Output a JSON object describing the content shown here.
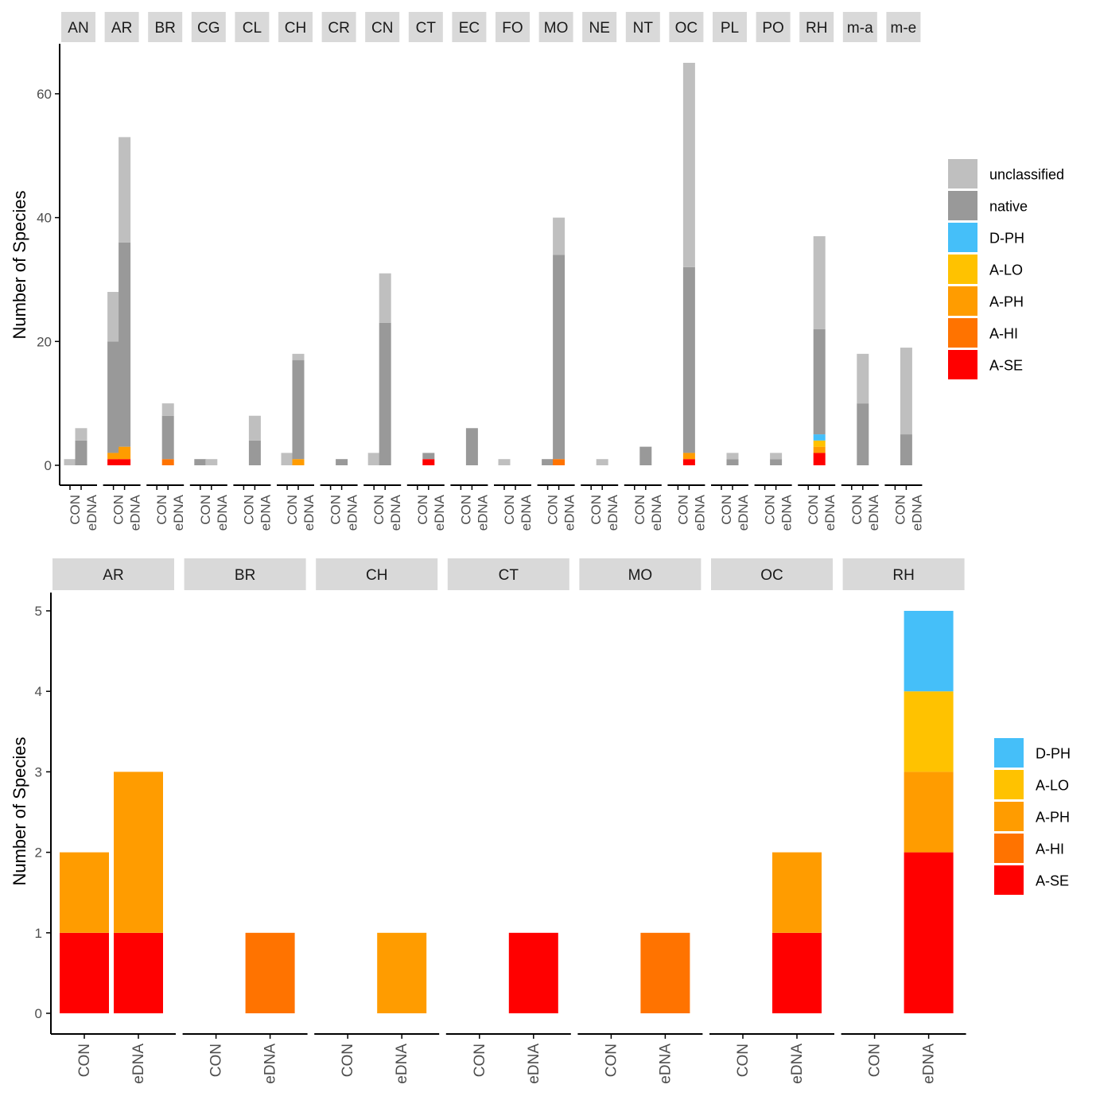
{
  "colors": {
    "unclassified": "#bfbfbf",
    "native": "#999999",
    "D-PH": "#45bff9",
    "A-LO": "#ffc200",
    "A-PH": "#ff9c00",
    "A-HI": "#ff7300",
    "A-SE": "#ff0000",
    "strip": "#d9d9d9",
    "axis": "#000000",
    "tick_text": "#4d4d4d"
  },
  "chart_data": [
    {
      "type": "bar",
      "stacked": true,
      "ylabel": "Number of Species",
      "ylim": [
        0,
        68
      ],
      "yticks": [
        0,
        20,
        40,
        60
      ],
      "x_levels": [
        "CON",
        "eDNA"
      ],
      "stack_order": [
        "A-SE",
        "A-HI",
        "A-PH",
        "A-LO",
        "D-PH",
        "native",
        "unclassified"
      ],
      "legend": [
        "unclassified",
        "native",
        "D-PH",
        "A-LO",
        "A-PH",
        "A-HI",
        "A-SE"
      ],
      "facets": [
        {
          "name": "AN",
          "CON": {
            "unclassified": 1
          },
          "eDNA": {
            "native": 4,
            "unclassified": 2
          }
        },
        {
          "name": "AR",
          "CON": {
            "A-SE": 1,
            "A-PH": 1,
            "native": 18,
            "unclassified": 8
          },
          "eDNA": {
            "A-SE": 1,
            "A-PH": 2,
            "native": 33,
            "unclassified": 17
          }
        },
        {
          "name": "BR",
          "CON": {},
          "eDNA": {
            "A-HI": 1,
            "native": 7,
            "unclassified": 2
          }
        },
        {
          "name": "CG",
          "CON": {
            "native": 1
          },
          "eDNA": {
            "unclassified": 1
          }
        },
        {
          "name": "CL",
          "CON": {},
          "eDNA": {
            "native": 4,
            "unclassified": 4
          }
        },
        {
          "name": "CH",
          "CON": {
            "unclassified": 2
          },
          "eDNA": {
            "A-PH": 1,
            "native": 16,
            "unclassified": 1
          }
        },
        {
          "name": "CR",
          "CON": {},
          "eDNA": {
            "native": 1
          }
        },
        {
          "name": "CN",
          "CON": {
            "unclassified": 2
          },
          "eDNA": {
            "native": 23,
            "unclassified": 8
          }
        },
        {
          "name": "CT",
          "CON": {},
          "eDNA": {
            "A-SE": 1,
            "native": 1
          }
        },
        {
          "name": "EC",
          "CON": {},
          "eDNA": {
            "native": 6
          }
        },
        {
          "name": "FO",
          "CON": {
            "unclassified": 1
          },
          "eDNA": {}
        },
        {
          "name": "MO",
          "CON": {
            "native": 1
          },
          "eDNA": {
            "A-HI": 1,
            "native": 33,
            "unclassified": 6
          }
        },
        {
          "name": "NE",
          "CON": {},
          "eDNA": {
            "unclassified": 1
          }
        },
        {
          "name": "NT",
          "CON": {},
          "eDNA": {
            "native": 3
          }
        },
        {
          "name": "OC",
          "CON": {},
          "eDNA": {
            "A-SE": 1,
            "A-PH": 1,
            "native": 30,
            "unclassified": 33
          }
        },
        {
          "name": "PL",
          "CON": {},
          "eDNA": {
            "native": 1,
            "unclassified": 1
          }
        },
        {
          "name": "PO",
          "CON": {},
          "eDNA": {
            "native": 1,
            "unclassified": 1
          }
        },
        {
          "name": "RH",
          "CON": {},
          "eDNA": {
            "A-SE": 2,
            "A-PH": 1,
            "A-LO": 1,
            "D-PH": 1,
            "native": 17,
            "unclassified": 15
          }
        },
        {
          "name": "m-a",
          "CON": {},
          "eDNA": {
            "native": 10,
            "unclassified": 8
          }
        },
        {
          "name": "m-e",
          "CON": {},
          "eDNA": {
            "native": 5,
            "unclassified": 14
          }
        }
      ]
    },
    {
      "type": "bar",
      "stacked": true,
      "ylabel": "Number of Species",
      "ylim": [
        0,
        5.25
      ],
      "yticks": [
        0,
        1,
        2,
        3,
        4,
        5
      ],
      "x_levels": [
        "CON",
        "eDNA"
      ],
      "stack_order": [
        "A-SE",
        "A-HI",
        "A-PH",
        "A-LO",
        "D-PH"
      ],
      "legend": [
        "D-PH",
        "A-LO",
        "A-PH",
        "A-HI",
        "A-SE"
      ],
      "facets": [
        {
          "name": "AR",
          "CON": {
            "A-SE": 1,
            "A-PH": 1
          },
          "eDNA": {
            "A-SE": 1,
            "A-PH": 2
          }
        },
        {
          "name": "BR",
          "CON": {},
          "eDNA": {
            "A-HI": 1
          }
        },
        {
          "name": "CH",
          "CON": {},
          "eDNA": {
            "A-PH": 1
          }
        },
        {
          "name": "CT",
          "CON": {},
          "eDNA": {
            "A-SE": 1
          }
        },
        {
          "name": "MO",
          "CON": {},
          "eDNA": {
            "A-HI": 1
          }
        },
        {
          "name": "OC",
          "CON": {},
          "eDNA": {
            "A-SE": 1,
            "A-PH": 1
          }
        },
        {
          "name": "RH",
          "CON": {},
          "eDNA": {
            "A-SE": 2,
            "A-PH": 1,
            "A-LO": 1,
            "D-PH": 1
          }
        }
      ]
    }
  ]
}
